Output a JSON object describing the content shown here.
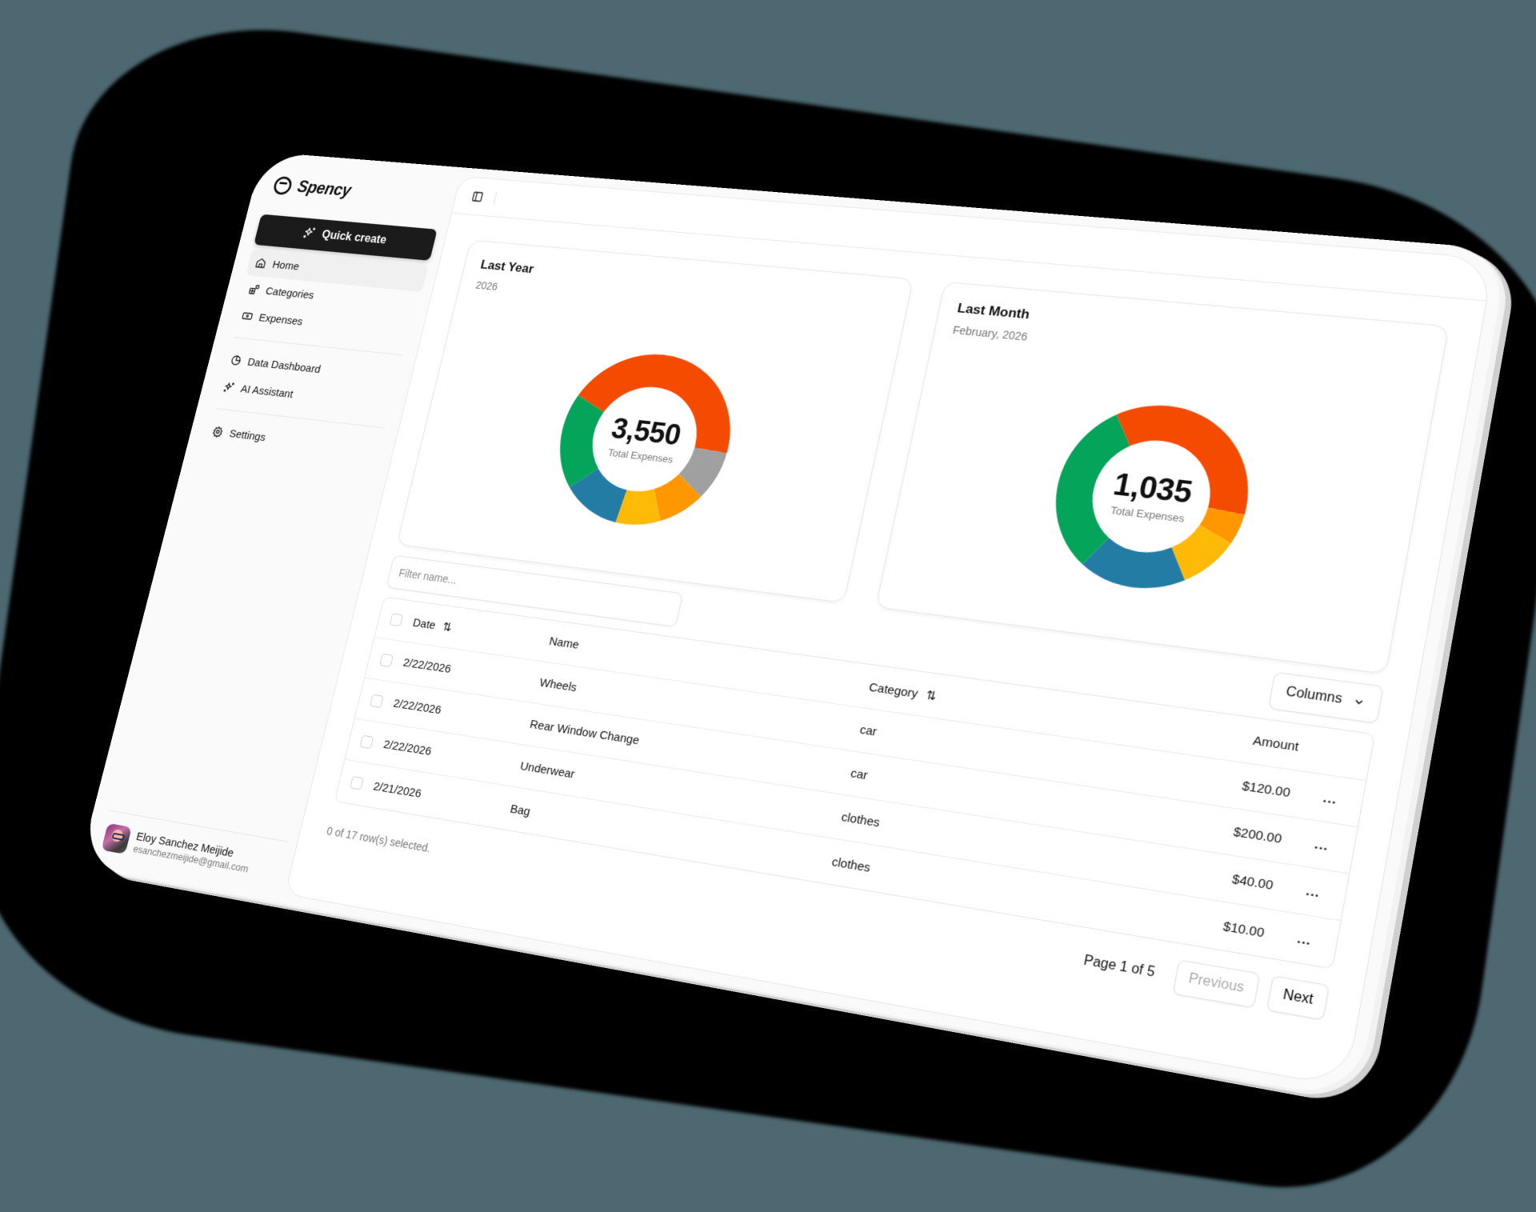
{
  "app": {
    "name": "Spency",
    "background_color": "#4d6870"
  },
  "sidebar": {
    "quick_create_label": "Quick create",
    "items": [
      {
        "label": "Home",
        "icon": "home-icon",
        "active": true
      },
      {
        "label": "Categories",
        "icon": "grid-plus-icon"
      },
      {
        "label": "Expenses",
        "icon": "banknote-icon"
      },
      {
        "label": "Data Dashboard",
        "icon": "pie-chart-icon"
      },
      {
        "label": "AI Assistant",
        "icon": "sparkles-icon"
      },
      {
        "label": "Settings",
        "icon": "gear-icon"
      }
    ],
    "user": {
      "name": "Eloy Sanchez Meijide",
      "email": "esanchezmeijide@gmail.com"
    }
  },
  "topbar": {
    "toggle_icon": "sidebar-toggle-icon"
  },
  "cards": [
    {
      "title": "Last Year",
      "subtitle": "2026",
      "total": "3,550",
      "total_label": "Total Expenses"
    },
    {
      "title": "Last Month",
      "subtitle": "February, 2026",
      "total": "1,035",
      "total_label": "Total Expenses"
    }
  ],
  "chart_data": [
    {
      "type": "pie",
      "title": "Last Year",
      "subtitle": "2026",
      "center_value": 3550,
      "center_label": "Total Expenses",
      "categories": [
        "Segment 1 (red-orange)",
        "Segment 2 (gray)",
        "Segment 3 (orange)",
        "Segment 4 (yellow)",
        "Segment 5 (blue)",
        "Segment 6 (green)"
      ],
      "values": [
        1560,
        320,
        300,
        300,
        420,
        650
      ],
      "colors": [
        "#f44b00",
        "#a0a0a0",
        "#ff9800",
        "#ffba08",
        "#227ca3",
        "#04a45a"
      ],
      "start_angle_deg": -65,
      "donut": true
    },
    {
      "type": "pie",
      "title": "Last Month",
      "subtitle": "February, 2026",
      "center_value": 1035,
      "center_label": "Total Expenses",
      "categories": [
        "Segment 1 (red-orange)",
        "Segment 2 (orange)",
        "Segment 3 (yellow)",
        "Segment 4 (blue)",
        "Segment 5 (green)"
      ],
      "values": [
        365,
        55,
        100,
        190,
        325
      ],
      "colors": [
        "#f44b00",
        "#ff9800",
        "#ffba08",
        "#227ca3",
        "#04a45a"
      ],
      "start_angle_deg": -32,
      "donut": true
    }
  ],
  "table": {
    "filter_placeholder": "Filter name...",
    "columns_button": "Columns",
    "headers": {
      "date": "Date",
      "name": "Name",
      "category": "Category",
      "amount": "Amount"
    },
    "rows": [
      {
        "date": "2/22/2026",
        "name": "Wheels",
        "category": "car",
        "amount": "$120.00"
      },
      {
        "date": "2/22/2026",
        "name": "Rear Window Change",
        "category": "car",
        "amount": "$200.00"
      },
      {
        "date": "2/22/2026",
        "name": "Underwear",
        "category": "clothes",
        "amount": "$40.00"
      },
      {
        "date": "2/21/2026",
        "name": "Bag",
        "category": "clothes",
        "amount": "$10.00"
      }
    ],
    "row_action": "...",
    "selection_info": "0 of 17 row(s) selected.",
    "page_info": "Page 1 of 5",
    "prev_label": "Previous",
    "next_label": "Next"
  }
}
